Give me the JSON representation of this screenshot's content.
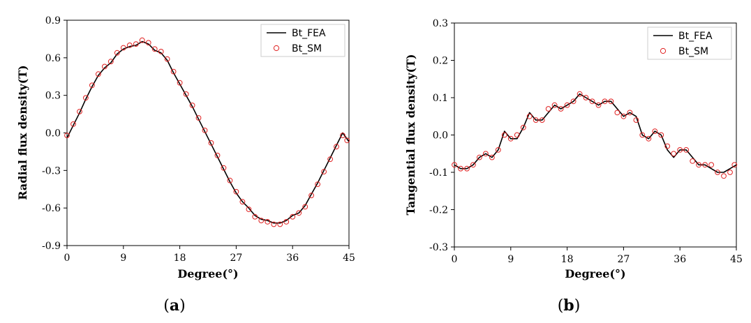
{
  "chart_data": [
    {
      "type": "line",
      "caption": "a",
      "caption_open": "(",
      "caption_close": ")",
      "xlabel": "Degree(°)",
      "ylabel": "Radial flux density(T)",
      "xlim": [
        0,
        45
      ],
      "ylim": [
        -0.9,
        0.9
      ],
      "xticks": [
        "0",
        "9",
        "18",
        "27",
        "36",
        "45"
      ],
      "xtick_values": [
        0,
        9,
        18,
        27,
        36,
        45
      ],
      "yticks": [
        "-0.9",
        "-0.6",
        "-0.3",
        "0.0",
        "0.3",
        "0.6",
        "0.9"
      ],
      "ytick_values": [
        -0.9,
        -0.6,
        -0.3,
        0.0,
        0.3,
        0.6,
        0.9
      ],
      "legend_position": "top-right",
      "series": [
        {
          "name": "Bt_FEA",
          "style": "solid-line",
          "color": "#000000",
          "x": [
            0,
            1,
            2,
            3,
            4,
            5,
            6,
            7,
            8,
            9,
            10,
            11,
            12,
            13,
            14,
            15,
            16,
            17,
            18,
            19,
            20,
            21,
            22,
            23,
            24,
            25,
            26,
            27,
            28,
            29,
            30,
            31,
            32,
            33,
            34,
            35,
            36,
            37,
            38,
            39,
            40,
            41,
            42,
            43,
            44,
            45
          ],
          "values": [
            -0.04,
            0.06,
            0.16,
            0.27,
            0.37,
            0.46,
            0.52,
            0.56,
            0.63,
            0.67,
            0.69,
            0.7,
            0.73,
            0.71,
            0.66,
            0.64,
            0.58,
            0.48,
            0.39,
            0.3,
            0.21,
            0.11,
            0.01,
            -0.09,
            -0.19,
            -0.29,
            -0.39,
            -0.48,
            -0.55,
            -0.6,
            -0.66,
            -0.69,
            -0.7,
            -0.72,
            -0.72,
            -0.7,
            -0.66,
            -0.64,
            -0.58,
            -0.49,
            -0.4,
            -0.3,
            -0.2,
            -0.1,
            0.0,
            -0.07
          ]
        },
        {
          "name": "Bt_SM",
          "style": "open-circle-markers",
          "color": "#e02020",
          "x": [
            0,
            1,
            2,
            3,
            4,
            5,
            6,
            7,
            8,
            9,
            10,
            11,
            12,
            13,
            14,
            15,
            16,
            17,
            18,
            19,
            20,
            21,
            22,
            23,
            24,
            25,
            26,
            27,
            28,
            29,
            30,
            31,
            32,
            33,
            34,
            35,
            36,
            37,
            38,
            39,
            40,
            41,
            42,
            43,
            44,
            44.7
          ],
          "values": [
            -0.02,
            0.07,
            0.17,
            0.28,
            0.38,
            0.47,
            0.53,
            0.57,
            0.64,
            0.68,
            0.7,
            0.71,
            0.74,
            0.72,
            0.67,
            0.65,
            0.59,
            0.49,
            0.4,
            0.31,
            0.22,
            0.12,
            0.02,
            -0.08,
            -0.18,
            -0.28,
            -0.38,
            -0.47,
            -0.55,
            -0.61,
            -0.67,
            -0.7,
            -0.71,
            -0.73,
            -0.73,
            -0.71,
            -0.67,
            -0.64,
            -0.59,
            -0.5,
            -0.41,
            -0.31,
            -0.21,
            -0.11,
            -0.02,
            -0.06
          ]
        }
      ]
    },
    {
      "type": "line",
      "caption": "b",
      "caption_open": "(",
      "caption_close": ")",
      "xlabel": "Degree(°)",
      "ylabel": "Tangential flux density(T)",
      "xlim": [
        0,
        45
      ],
      "ylim": [
        -0.3,
        0.3
      ],
      "xticks": [
        "0",
        "9",
        "18",
        "27",
        "36",
        "45"
      ],
      "xtick_values": [
        0,
        9,
        18,
        27,
        36,
        45
      ],
      "yticks": [
        "-0.3",
        "-0.2",
        "-0.1",
        "0.0",
        "0.1",
        "0.2",
        "0.3"
      ],
      "ytick_values": [
        -0.3,
        -0.2,
        -0.1,
        0.0,
        0.1,
        0.2,
        0.3
      ],
      "legend_position": "top-right",
      "series": [
        {
          "name": "Bt_FEA",
          "style": "solid-line",
          "color": "#000000",
          "x": [
            0,
            1,
            2,
            3,
            4,
            5,
            6,
            7,
            8,
            9,
            10,
            11,
            12,
            13,
            14,
            15,
            16,
            17,
            18,
            19,
            20,
            21,
            22,
            23,
            24,
            25,
            26,
            27,
            28,
            29,
            30,
            31,
            32,
            33,
            34,
            35,
            36,
            37,
            38,
            39,
            40,
            41,
            42,
            43,
            44,
            45
          ],
          "values": [
            -0.08,
            -0.09,
            -0.09,
            -0.08,
            -0.06,
            -0.05,
            -0.06,
            -0.04,
            0.01,
            -0.01,
            -0.01,
            0.02,
            0.06,
            0.04,
            0.04,
            0.06,
            0.08,
            0.07,
            0.08,
            0.09,
            0.11,
            0.1,
            0.09,
            0.08,
            0.09,
            0.09,
            0.07,
            0.05,
            0.06,
            0.05,
            0.0,
            -0.01,
            0.01,
            0.0,
            -0.04,
            -0.06,
            -0.04,
            -0.04,
            -0.06,
            -0.08,
            -0.08,
            -0.09,
            -0.1,
            -0.1,
            -0.09,
            -0.08
          ]
        },
        {
          "name": "Bt_SM",
          "style": "open-circle-markers",
          "color": "#e02020",
          "x": [
            0,
            1,
            2,
            3,
            4,
            5,
            6,
            7,
            8,
            9,
            10,
            11,
            12,
            13,
            14,
            15,
            16,
            17,
            18,
            19,
            20,
            21,
            22,
            23,
            24,
            25,
            26,
            27,
            28,
            29,
            30,
            31,
            32,
            33,
            34,
            35,
            36,
            37,
            38,
            39,
            40,
            41,
            42,
            43,
            44,
            44.7
          ],
          "values": [
            -0.08,
            -0.09,
            -0.09,
            -0.08,
            -0.06,
            -0.05,
            -0.06,
            -0.04,
            0.0,
            -0.01,
            0.0,
            0.02,
            0.05,
            0.04,
            0.04,
            0.07,
            0.08,
            0.07,
            0.08,
            0.09,
            0.11,
            0.1,
            0.09,
            0.08,
            0.09,
            0.09,
            0.06,
            0.05,
            0.06,
            0.04,
            0.0,
            -0.01,
            0.01,
            0.0,
            -0.03,
            -0.05,
            -0.04,
            -0.04,
            -0.07,
            -0.08,
            -0.08,
            -0.08,
            -0.1,
            -0.11,
            -0.1,
            -0.08
          ]
        }
      ]
    }
  ]
}
